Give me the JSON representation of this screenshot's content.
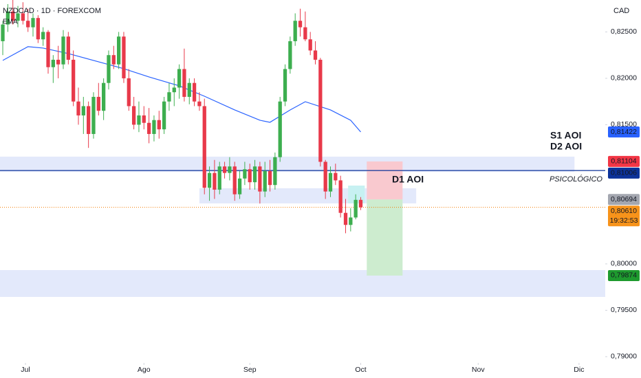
{
  "chart_data": {
    "type": "candlestick",
    "title": "NZDCAD · 1D · FOREXCOM",
    "subtitle": "EMA",
    "currency": "CAD",
    "up_color": "#3dae4f",
    "down_color": "#e8394a",
    "x": [
      0,
      1,
      2,
      3,
      4,
      5,
      6,
      7,
      8,
      9,
      10,
      11,
      12,
      13,
      14,
      15,
      16,
      17,
      18,
      19,
      20,
      21,
      22,
      23,
      24,
      25,
      26,
      27,
      28,
      29,
      30,
      31,
      32,
      33,
      34,
      35,
      36,
      37,
      38,
      39,
      40,
      41,
      42,
      43,
      44,
      45,
      46,
      47,
      48,
      49,
      50,
      51,
      52,
      53,
      54,
      55,
      56,
      57,
      58,
      59,
      60,
      61,
      62,
      63,
      64,
      65,
      66,
      67,
      68,
      69,
      70,
      71
    ],
    "open": [
      0.824,
      0.8258,
      0.8272,
      0.8262,
      0.827,
      0.8262,
      0.8255,
      0.8265,
      0.8242,
      0.825,
      0.8212,
      0.822,
      0.8215,
      0.8245,
      0.822,
      0.8175,
      0.816,
      0.817,
      0.814,
      0.818,
      0.8165,
      0.8195,
      0.8225,
      0.8215,
      0.8245,
      0.82,
      0.817,
      0.815,
      0.816,
      0.8152,
      0.814,
      0.8155,
      0.8145,
      0.8175,
      0.8185,
      0.819,
      0.821,
      0.818,
      0.8195,
      0.8175,
      0.817,
      0.8082,
      0.8098,
      0.808,
      0.8105,
      0.8098,
      0.8105,
      0.8075,
      0.8092,
      0.8102,
      0.8088,
      0.8105,
      0.8078,
      0.81,
      0.8085,
      0.8115,
      0.8175,
      0.821,
      0.824,
      0.8262,
      0.8255,
      0.8242,
      0.823,
      0.822,
      0.811,
      0.8078,
      0.8098,
      0.809,
      0.8055,
      0.8042,
      0.805,
      0.8069
    ],
    "high": [
      0.8262,
      0.828,
      0.8285,
      0.8278,
      0.8282,
      0.8275,
      0.827,
      0.8268,
      0.8255,
      0.8252,
      0.8225,
      0.8235,
      0.8252,
      0.825,
      0.823,
      0.819,
      0.818,
      0.8175,
      0.8185,
      0.8195,
      0.82,
      0.823,
      0.8235,
      0.825,
      0.825,
      0.821,
      0.818,
      0.8175,
      0.817,
      0.8168,
      0.816,
      0.8165,
      0.818,
      0.8195,
      0.82,
      0.8215,
      0.8232,
      0.82,
      0.82,
      0.8185,
      0.8178,
      0.8105,
      0.8112,
      0.811,
      0.811,
      0.8115,
      0.811,
      0.81,
      0.811,
      0.8108,
      0.8112,
      0.811,
      0.811,
      0.8112,
      0.812,
      0.818,
      0.8215,
      0.8245,
      0.827,
      0.8275,
      0.8272,
      0.825,
      0.824,
      0.8222,
      0.8112,
      0.8105,
      0.8108,
      0.8095,
      0.807,
      0.806,
      0.8075,
      0.8072
    ],
    "low": [
      0.8225,
      0.825,
      0.8258,
      0.8255,
      0.8258,
      0.825,
      0.8245,
      0.8238,
      0.8235,
      0.8205,
      0.8195,
      0.82,
      0.821,
      0.8215,
      0.817,
      0.815,
      0.814,
      0.8125,
      0.8135,
      0.816,
      0.8155,
      0.8188,
      0.821,
      0.821,
      0.8195,
      0.8165,
      0.8145,
      0.8142,
      0.8145,
      0.813,
      0.8132,
      0.8135,
      0.814,
      0.8165,
      0.817,
      0.8178,
      0.8175,
      0.8172,
      0.817,
      0.8165,
      0.8075,
      0.8068,
      0.807,
      0.8075,
      0.8092,
      0.809,
      0.8068,
      0.807,
      0.8085,
      0.808,
      0.808,
      0.8065,
      0.8072,
      0.8078,
      0.808,
      0.811,
      0.817,
      0.8205,
      0.8235,
      0.8245,
      0.824,
      0.8225,
      0.8215,
      0.8105,
      0.807,
      0.8072,
      0.8085,
      0.805,
      0.8033,
      0.8035,
      0.8048,
      0.8058
    ],
    "close": [
      0.8258,
      0.8272,
      0.8262,
      0.827,
      0.8262,
      0.8255,
      0.8265,
      0.8242,
      0.825,
      0.8212,
      0.822,
      0.8215,
      0.8245,
      0.822,
      0.8175,
      0.816,
      0.817,
      0.814,
      0.818,
      0.8165,
      0.8195,
      0.8225,
      0.8215,
      0.8245,
      0.82,
      0.817,
      0.815,
      0.816,
      0.8152,
      0.814,
      0.8155,
      0.8145,
      0.8175,
      0.8185,
      0.819,
      0.821,
      0.818,
      0.8195,
      0.8175,
      0.817,
      0.8082,
      0.8098,
      0.808,
      0.8105,
      0.8098,
      0.8105,
      0.8075,
      0.8092,
      0.8102,
      0.8088,
      0.8105,
      0.8078,
      0.81,
      0.8085,
      0.8115,
      0.8175,
      0.821,
      0.824,
      0.8262,
      0.8255,
      0.8242,
      0.823,
      0.822,
      0.811,
      0.8078,
      0.8098,
      0.809,
      0.8055,
      0.8042,
      0.805,
      0.8069,
      0.8061
    ],
    "ema": {
      "color": "#2962ff",
      "x": [
        0,
        5,
        8,
        13,
        19,
        24,
        29,
        35,
        40,
        46,
        51,
        53,
        57,
        60,
        65,
        69,
        71
      ],
      "values": [
        0.82193,
        0.82341,
        0.82326,
        0.82267,
        0.82178,
        0.82104,
        0.82015,
        0.81919,
        0.81807,
        0.81659,
        0.81548,
        0.81526,
        0.81659,
        0.81748,
        0.81659,
        0.81548,
        0.81422
      ]
    },
    "zones": [
      {
        "x": [
          -0.55,
          113.4
        ],
        "from": 0.80993,
        "to": 0.81156,
        "color": "#e3e9fb"
      },
      {
        "x": [
          39.0,
          82.0
        ],
        "from": 0.80652,
        "to": 0.80815,
        "color": "#e3e9fb"
      },
      {
        "x": [
          -0.55,
          119.5
        ],
        "from": 0.79644,
        "to": 0.79933,
        "color": "#e3e9fb"
      },
      {
        "x": [
          68.5,
          71.8
        ],
        "from": 0.80652,
        "to": 0.80844,
        "color": "#c7f1f2"
      }
    ],
    "position": {
      "x": [
        72.2,
        79.3
      ],
      "entry": 0.80694,
      "stop": 0.81104,
      "target": 0.79874,
      "stop_color": "#f9c9cf",
      "target_color": "#cdeccf"
    },
    "levels": [
      {
        "value": 0.81006,
        "color": "#0c3299",
        "label": "PSICOLÓGICO"
      }
    ],
    "current_price": {
      "value": 0.8061,
      "color": "#f57c00"
    },
    "annotations": [
      "D1 AOI",
      "S1 AOI",
      "D2 AOI"
    ],
    "price_labels": [
      {
        "value": 0.81422,
        "label": "0,81422",
        "color": "#2962ff"
      },
      {
        "value": 0.81104,
        "label": "0,81104",
        "color": "#f23645"
      },
      {
        "value": 0.81006,
        "label": "0,81006",
        "color": "#0c3299"
      },
      {
        "value": 0.80694,
        "label": "0,80694",
        "color": "#a4a7b0"
      },
      {
        "value": 0.8061,
        "label": "0,80610",
        "color": "#f7931a",
        "countdown": "19:32:53"
      },
      {
        "value": 0.79874,
        "label": "0,79874",
        "color": "#1e9a2e"
      }
    ],
    "xlim": [
      -0.55,
      119.5
    ],
    "ylim": [
      0.78933,
      0.82844
    ],
    "xticks": [
      {
        "value": 4.5,
        "label": "Jul"
      },
      {
        "value": 28,
        "label": "Ago"
      },
      {
        "value": 49,
        "label": "Sep"
      },
      {
        "value": 71,
        "label": "Oct"
      },
      {
        "value": 94.3,
        "label": "Nov"
      },
      {
        "value": 114.3,
        "label": "Dic"
      }
    ],
    "yticks": [
      {
        "value": 0.825,
        "label": "0,82500"
      },
      {
        "value": 0.82,
        "label": "0,82000"
      },
      {
        "value": 0.815,
        "label": "0,81500"
      },
      {
        "value": 0.8,
        "label": "0,80000"
      },
      {
        "value": 0.795,
        "label": "0,79500"
      },
      {
        "value": 0.79,
        "label": "0,79000"
      }
    ],
    "grid": false
  }
}
